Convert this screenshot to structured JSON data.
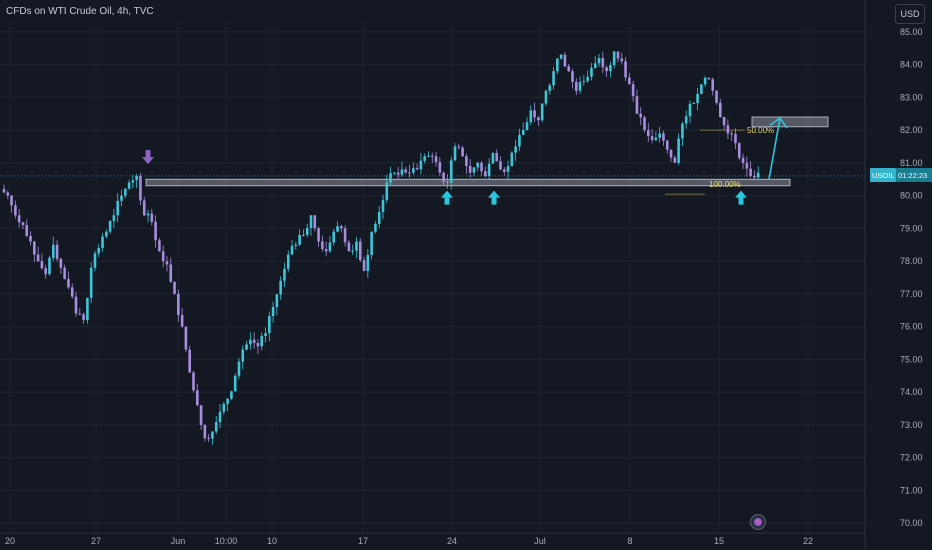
{
  "header": {
    "title": "CFDs on WTI Crude Oil, 4h, TVC",
    "currency": "USD"
  },
  "colors": {
    "background": "#141823",
    "bull": "#3ec6d8",
    "bear": "#a78ee0",
    "zone": "#8c8f99",
    "arrow_cyan": "#29c6de",
    "arrow_purple": "#8e63c4",
    "fib": "#e9d86a",
    "price_badge": "#36b3cc"
  },
  "price_badge": {
    "symbol": "USOIL",
    "countdown": "01:22:23",
    "price": 80.6
  },
  "fib_labels": [
    {
      "label": "50.00%",
      "value": 82.0
    },
    {
      "label": "100.00%",
      "value": 80.35
    }
  ],
  "chart_data": {
    "type": "candlestick",
    "ylim": [
      69.7,
      85.3
    ],
    "y_ticks": [
      "70.00",
      "71.00",
      "72.00",
      "73.00",
      "74.00",
      "75.00",
      "76.00",
      "77.00",
      "78.00",
      "79.00",
      "80.00",
      "81.00",
      "82.00",
      "83.00",
      "84.00",
      "85.00"
    ],
    "x_ticks": [
      "20",
      "27",
      "Jun",
      "10:00",
      "10",
      "17",
      "24",
      "Jul",
      "8",
      "15",
      "22"
    ],
    "close_path": [
      80.0,
      79.4,
      79.1,
      78.6,
      78.0,
      77.6,
      78.5,
      77.8,
      77.2,
      76.4,
      76.2,
      77.8,
      78.4,
      78.9,
      79.4,
      80.0,
      80.4,
      80.6,
      79.4,
      79.2,
      78.3,
      77.9,
      77.0,
      76.0,
      74.6,
      73.6,
      72.6,
      72.8,
      73.4,
      73.8,
      74.5,
      75.3,
      75.6,
      75.4,
      75.8,
      76.6,
      77.4,
      78.2,
      78.5,
      78.8,
      79.4,
      78.6,
      78.3,
      78.9,
      79.0,
      78.3,
      78.6,
      77.7,
      78.9,
      79.5,
      80.4,
      80.7,
      80.8,
      80.7,
      80.8,
      81.2,
      81.2,
      80.7,
      80.4,
      81.5,
      81.2,
      80.7,
      81.0,
      80.6,
      81.3,
      80.8,
      80.9,
      81.5,
      82.0,
      82.6,
      82.3,
      83.2,
      83.8,
      84.3,
      83.8,
      83.2,
      83.5,
      83.9,
      84.2,
      83.8,
      84.4,
      84.1,
      83.4,
      82.5,
      82.0,
      81.7,
      81.9,
      81.4,
      81.0,
      82.2,
      82.8,
      83.1,
      83.6,
      83.2,
      82.4,
      81.9,
      81.6,
      81.0,
      80.6,
      80.7
    ],
    "resistance_zone": {
      "low": 80.3,
      "high": 80.5,
      "from_index": 19,
      "to_index": 99
    },
    "target_box": {
      "low": 82.1,
      "high": 82.4
    },
    "annotations": [
      {
        "type": "arrow_down",
        "color": "purple",
        "index": 19,
        "price": 80.9
      },
      {
        "type": "arrow_up",
        "color": "cyan",
        "index": 64,
        "price": 80.0
      },
      {
        "type": "arrow_up",
        "color": "cyan",
        "index": 70,
        "price": 80.0
      },
      {
        "type": "arrow_up",
        "color": "cyan",
        "index": 99,
        "price": 80.0
      },
      {
        "type": "projection_arrow",
        "color": "cyan",
        "from_price": 80.5,
        "to_price": 82.0
      }
    ]
  }
}
